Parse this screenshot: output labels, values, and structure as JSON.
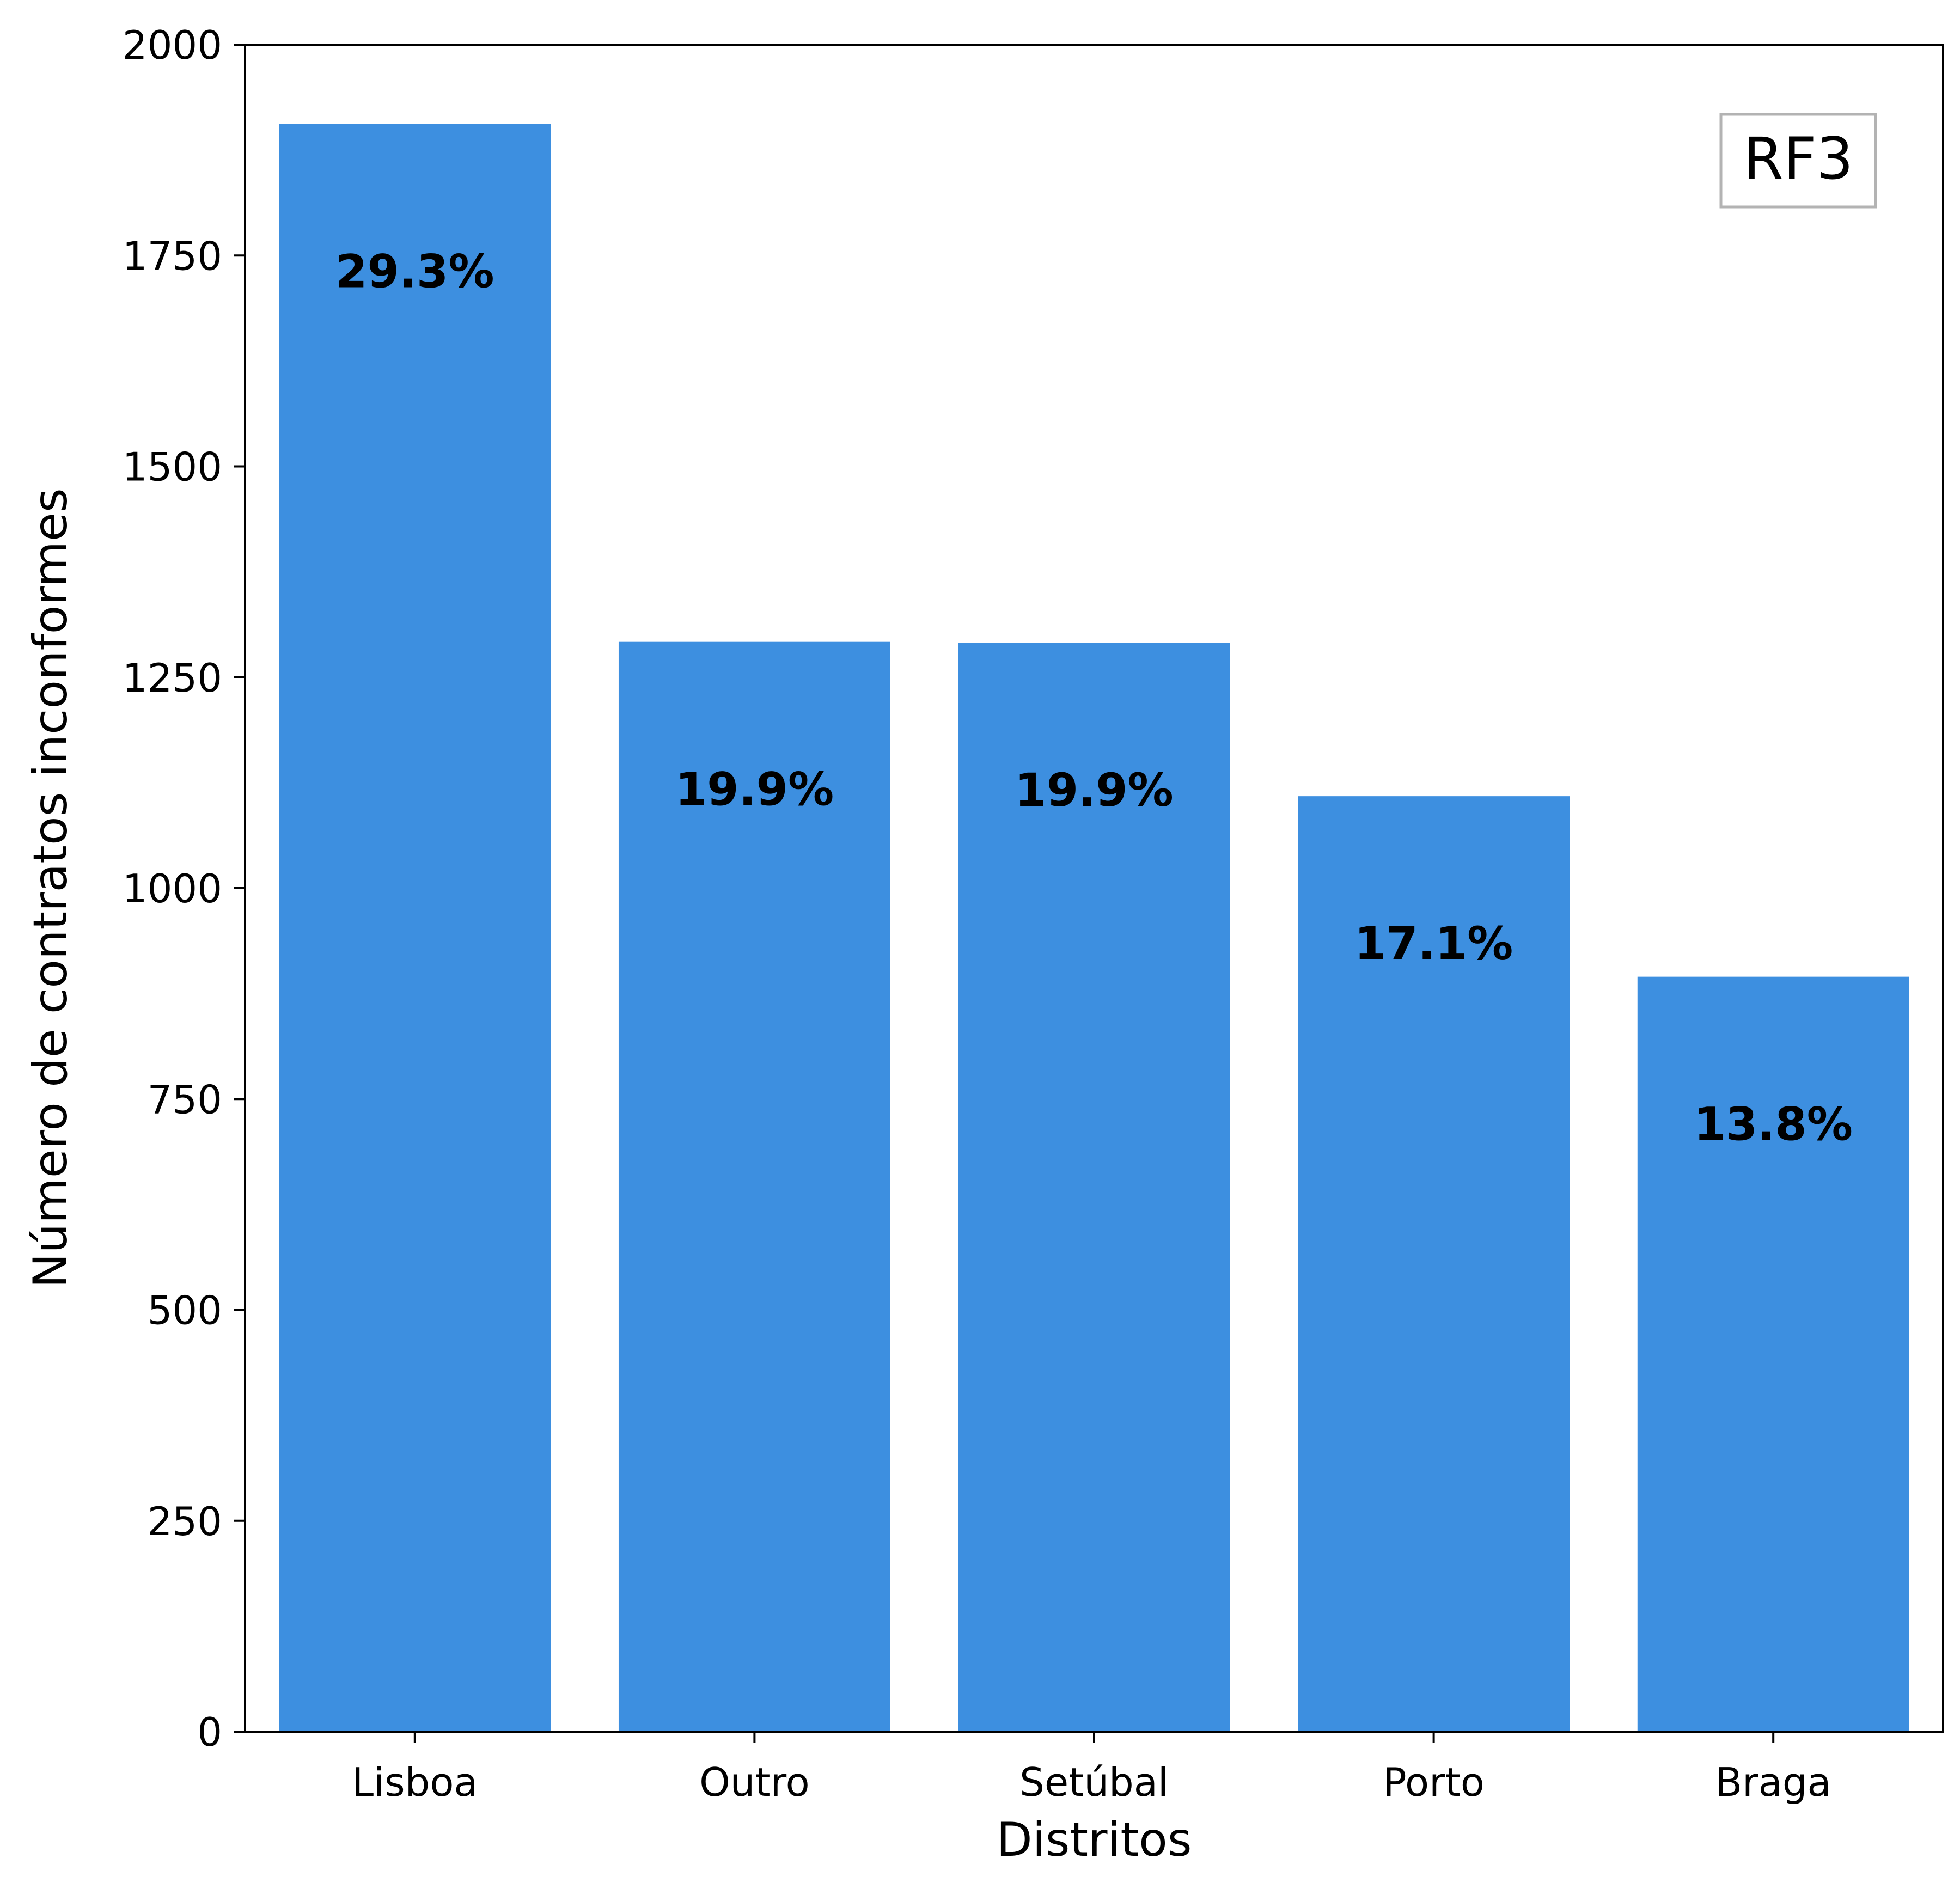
{
  "chart_data": {
    "type": "bar",
    "categories": [
      "Lisboa",
      "Outro",
      "Setúbal",
      "Porto",
      "Braga"
    ],
    "values": [
      1906,
      1292,
      1291,
      1109,
      895
    ],
    "bar_labels": [
      "29.3%",
      "19.9%",
      "19.9%",
      "17.1%",
      "13.8%"
    ],
    "xlabel": "Distritos",
    "ylabel": "Número de contratos inconformes",
    "ylim": [
      0,
      2000
    ],
    "yticks": [
      0,
      250,
      500,
      750,
      1000,
      1250,
      1500,
      1750,
      2000
    ],
    "annotation": "RF3",
    "annotation_position": "top-right",
    "bar_color": "#3d8fe0",
    "grid": false,
    "legend": false
  }
}
